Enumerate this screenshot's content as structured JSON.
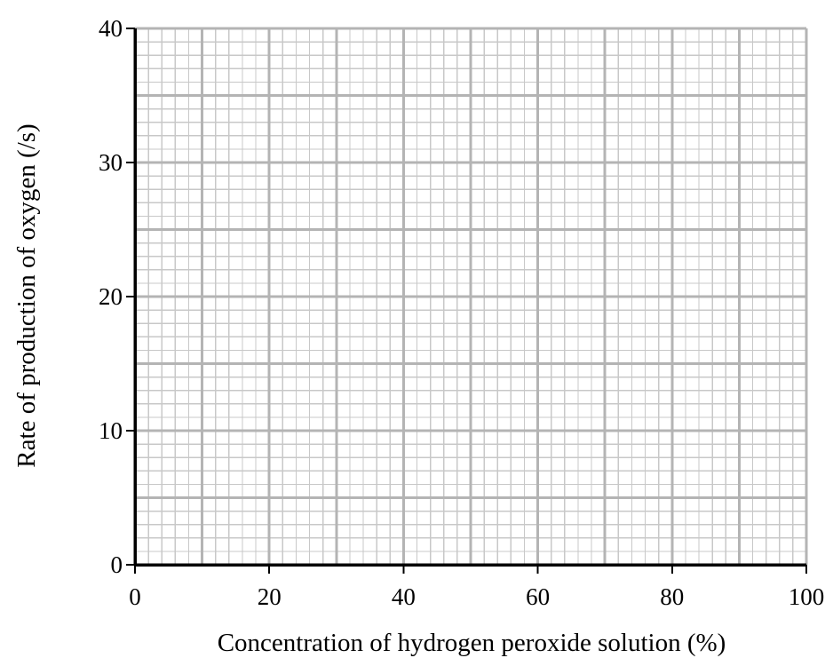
{
  "chart_data": {
    "type": "scatter",
    "title": "",
    "xlabel": "Concentration of hydrogen peroxide solution (%)",
    "ylabel": "Rate of production of oxygen (/s)",
    "xlim": [
      0,
      100
    ],
    "ylim": [
      0,
      40
    ],
    "x_ticks": [
      "0",
      "20",
      "40",
      "60",
      "80",
      "100"
    ],
    "y_ticks": [
      "0",
      "10",
      "20",
      "30",
      "40"
    ],
    "grid": true,
    "grid_style": "graph paper (major every 10, minor every 2)",
    "series": []
  },
  "colors": {
    "axis": "#000000",
    "grid_major": "#b4b4b4",
    "grid_minor": "#c8c8c8"
  }
}
